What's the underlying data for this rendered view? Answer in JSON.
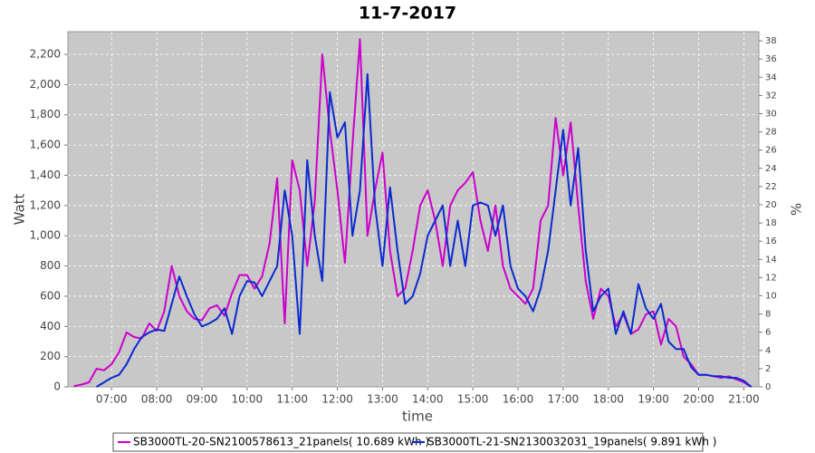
{
  "chart_data": {
    "type": "line",
    "title": "11-7-2017",
    "x_label": "time",
    "y_label": "Watt",
    "y2_label": "%",
    "x": [
      "06:10",
      "06:20",
      "06:30",
      "06:40",
      "06:50",
      "07:00",
      "07:10",
      "07:20",
      "07:30",
      "07:40",
      "07:50",
      "08:00",
      "08:10",
      "08:20",
      "08:30",
      "08:40",
      "08:50",
      "09:00",
      "09:10",
      "09:20",
      "09:30",
      "09:40",
      "09:50",
      "10:00",
      "10:10",
      "10:20",
      "10:30",
      "10:40",
      "10:50",
      "11:00",
      "11:10",
      "11:20",
      "11:30",
      "11:40",
      "11:50",
      "12:00",
      "12:10",
      "12:20",
      "12:30",
      "12:40",
      "12:50",
      "13:00",
      "13:10",
      "13:20",
      "13:30",
      "13:40",
      "13:50",
      "14:00",
      "14:10",
      "14:20",
      "14:30",
      "14:40",
      "14:50",
      "15:00",
      "15:10",
      "15:20",
      "15:30",
      "15:40",
      "15:50",
      "16:00",
      "16:10",
      "16:20",
      "16:30",
      "16:40",
      "16:50",
      "17:00",
      "17:10",
      "17:20",
      "17:30",
      "17:40",
      "17:50",
      "18:00",
      "18:10",
      "18:20",
      "18:30",
      "18:40",
      "18:50",
      "19:00",
      "19:10",
      "19:20",
      "19:30",
      "19:40",
      "19:50",
      "20:00",
      "20:10",
      "20:20",
      "20:30",
      "20:40",
      "20:50",
      "21:00",
      "21:10"
    ],
    "series": [
      {
        "name": "SB3000TL-20-SN2100578613_21panels( 10.689 kWh )",
        "color": "#cc00cc",
        "values": [
          5,
          15,
          30,
          120,
          110,
          150,
          230,
          360,
          330,
          320,
          420,
          370,
          500,
          800,
          600,
          500,
          450,
          440,
          520,
          540,
          470,
          620,
          740,
          740,
          650,
          730,
          950,
          1380,
          420,
          1500,
          1300,
          800,
          1230,
          2200,
          1700,
          1300,
          820,
          1600,
          2300,
          1000,
          1300,
          1550,
          900,
          600,
          650,
          900,
          1200,
          1300,
          1100,
          800,
          1200,
          1300,
          1350,
          1420,
          1100,
          900,
          1200,
          800,
          650,
          600,
          550,
          650,
          1100,
          1200,
          1780,
          1400,
          1750,
          1200,
          700,
          450,
          650,
          600,
          400,
          480,
          350,
          380,
          480,
          500,
          280,
          450,
          400,
          200,
          150,
          80,
          80,
          70,
          60,
          70,
          50,
          30,
          0
        ]
      },
      {
        "name": "SB3000TL-21-SN2130032031_19panels( 9.891 kWh )",
        "color": "#0a2ad0",
        "values": [
          null,
          null,
          null,
          0,
          30,
          60,
          80,
          150,
          250,
          330,
          360,
          380,
          370,
          550,
          730,
          600,
          480,
          400,
          420,
          450,
          520,
          350,
          600,
          700,
          690,
          600,
          700,
          800,
          1300,
          1000,
          350,
          1500,
          1000,
          700,
          1950,
          1650,
          1750,
          1000,
          1300,
          2070,
          1200,
          800,
          1320,
          900,
          550,
          600,
          750,
          1000,
          1100,
          1200,
          800,
          1100,
          800,
          1200,
          1220,
          1200,
          1000,
          1200,
          800,
          650,
          600,
          500,
          650,
          900,
          1300,
          1700,
          1200,
          1580,
          900,
          500,
          600,
          650,
          350,
          500,
          350,
          680,
          520,
          450,
          550,
          300,
          250,
          250,
          130,
          80,
          80,
          70,
          70,
          60,
          60,
          40,
          0
        ]
      }
    ],
    "xlim": [
      "06:02",
      "21:20"
    ],
    "xticks": [
      "07:00",
      "08:00",
      "09:00",
      "10:00",
      "11:00",
      "12:00",
      "13:00",
      "14:00",
      "15:00",
      "16:00",
      "17:00",
      "18:00",
      "19:00",
      "20:00",
      "21:00"
    ],
    "ylim": [
      0,
      2350
    ],
    "yticks": [
      0,
      200,
      400,
      600,
      800,
      {
        "value": 1000,
        "label": "1,000"
      },
      {
        "value": 1200,
        "label": "1,200"
      },
      {
        "value": 1400,
        "label": "1,400"
      },
      {
        "value": 1600,
        "label": "1,600"
      },
      {
        "value": 1800,
        "label": "1,800"
      },
      {
        "value": 2000,
        "label": "2,000"
      },
      {
        "value": 2200,
        "label": "2,200"
      }
    ],
    "y2lim": [
      0,
      39
    ],
    "y2ticks": [
      0,
      2,
      4,
      6,
      8,
      10,
      12,
      14,
      16,
      18,
      20,
      22,
      24,
      26,
      28,
      30,
      32,
      34,
      36,
      38
    ],
    "grid": true,
    "legend": "bottom"
  }
}
